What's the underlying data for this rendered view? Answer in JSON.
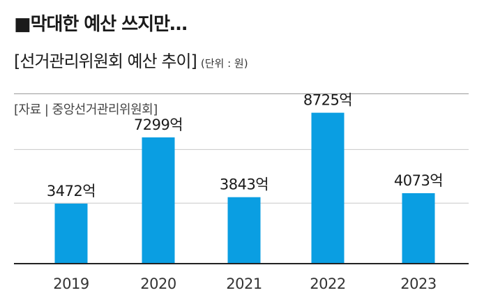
{
  "header": {
    "headline": "■막대한 예산 쓰지만…",
    "subtitle": "[선거관리위원회 예산 추이]",
    "unit": "(단위 : 원)",
    "source": "[자료 | 중앙선거관리위원회]"
  },
  "colors": {
    "bar": "#0a9ee2",
    "grid": "#c8c8c8",
    "axis": "#222222"
  },
  "chart_data": {
    "type": "bar",
    "title": "[선거관리위원회 예산 추이]",
    "unit": "(단위 : 원)",
    "categories": [
      "2019",
      "2020",
      "2021",
      "2022",
      "2023"
    ],
    "values": [
      3472,
      7299,
      3843,
      8725,
      4073
    ],
    "value_labels": [
      "3472억",
      "7299억",
      "3843억",
      "8725억",
      "4073억"
    ],
    "ylim": [
      0,
      10000
    ],
    "grid": true,
    "legend": "none"
  }
}
